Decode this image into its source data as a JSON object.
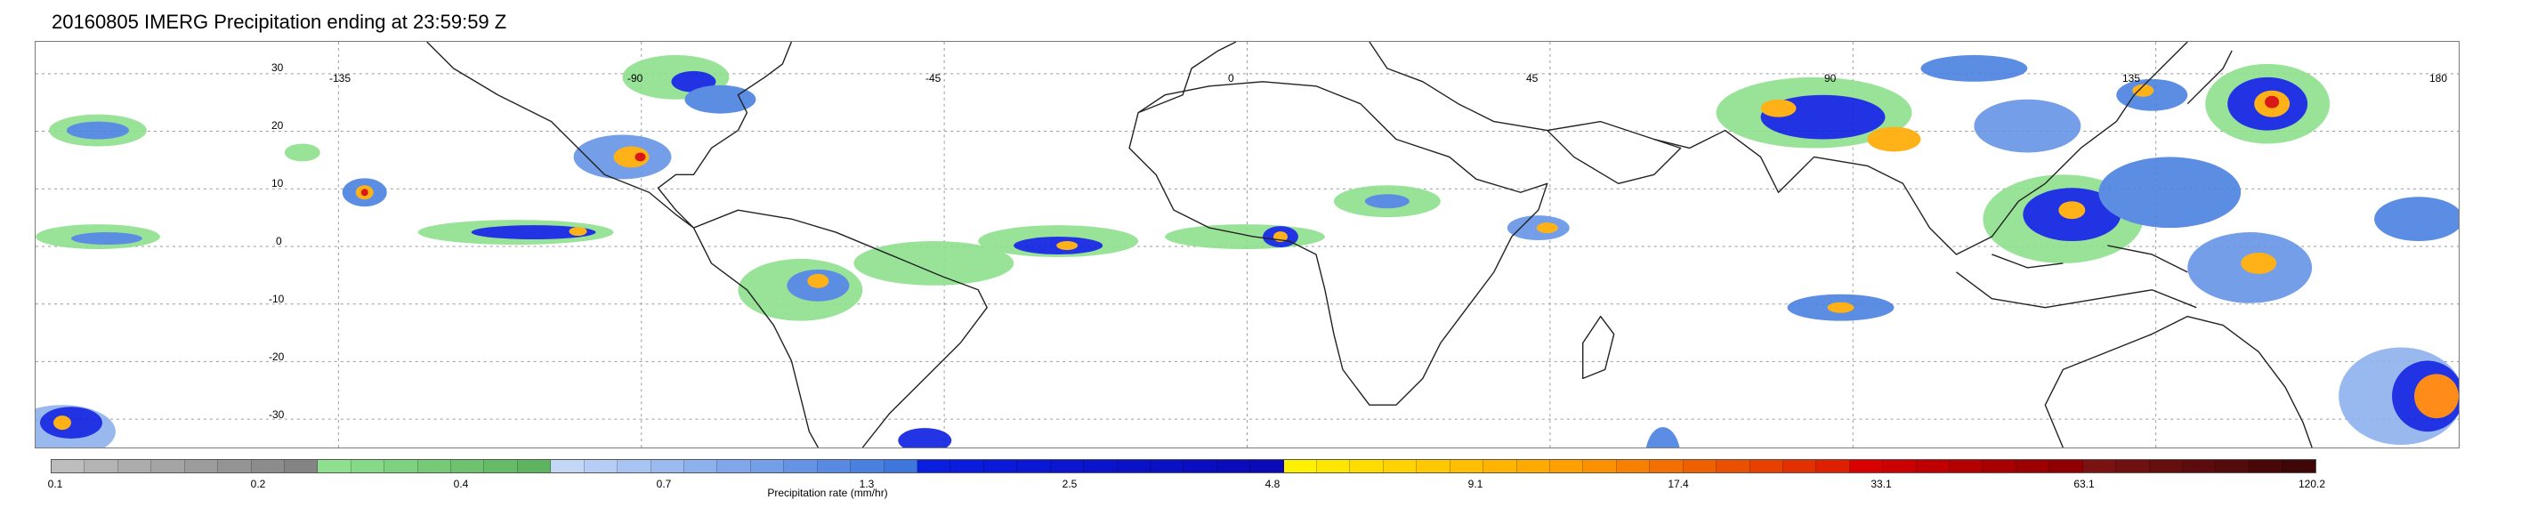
{
  "title": "20160805 IMERG Precipitation ending at 23:59:59 Z",
  "map": {
    "lon_labels": [
      "-135",
      "-90",
      "-45",
      "0",
      "45",
      "90",
      "135",
      "180"
    ],
    "lat_labels": [
      "30",
      "20",
      "10",
      "0",
      "-10",
      "-20",
      "-30"
    ]
  },
  "colorbar": {
    "title": "Precipitation rate (mm/hr)",
    "tick_labels": [
      "0.1",
      "0.2",
      "0.4",
      "0.7",
      "1.3",
      "2.5",
      "4.8",
      "9.1",
      "17.4",
      "33.1",
      "63.1",
      "120.2"
    ],
    "colors": [
      "#bdbdbd",
      "#b4b4b4",
      "#acacac",
      "#a4a4a4",
      "#9c9c9c",
      "#949494",
      "#8c8c8c",
      "#848484",
      "#8ee08e",
      "#86d986",
      "#7ed17e",
      "#76ca76",
      "#6ec26e",
      "#66bb66",
      "#5eb35e",
      "#c3d7f7",
      "#b6cef5",
      "#a8c4f2",
      "#9bbaf0",
      "#8db1ed",
      "#80a7eb",
      "#739ee8",
      "#6594e6",
      "#588ae3",
      "#4a81e1",
      "#3d77de",
      "#0a1ee0",
      "#0a1cdc",
      "#0a1ad8",
      "#0a18d4",
      "#0a16d0",
      "#0a14cc",
      "#0a12c8",
      "#0a10c4",
      "#0a0ec0",
      "#0a0cbc",
      "#0a0ab8",
      "#fff000",
      "#ffe600",
      "#ffdc00",
      "#ffd200",
      "#ffc800",
      "#ffbe00",
      "#ffb400",
      "#ffaa00",
      "#ffa000",
      "#fb9000",
      "#f78000",
      "#f37000",
      "#ef6000",
      "#eb5000",
      "#e74000",
      "#e33000",
      "#df2000",
      "#d80000",
      "#cc0000",
      "#c00000",
      "#b40000",
      "#a80000",
      "#9c0000",
      "#900000",
      "#7a1212",
      "#701010",
      "#660e0e",
      "#5c0c0c",
      "#520a0a",
      "#480808",
      "#3e0606"
    ]
  }
}
